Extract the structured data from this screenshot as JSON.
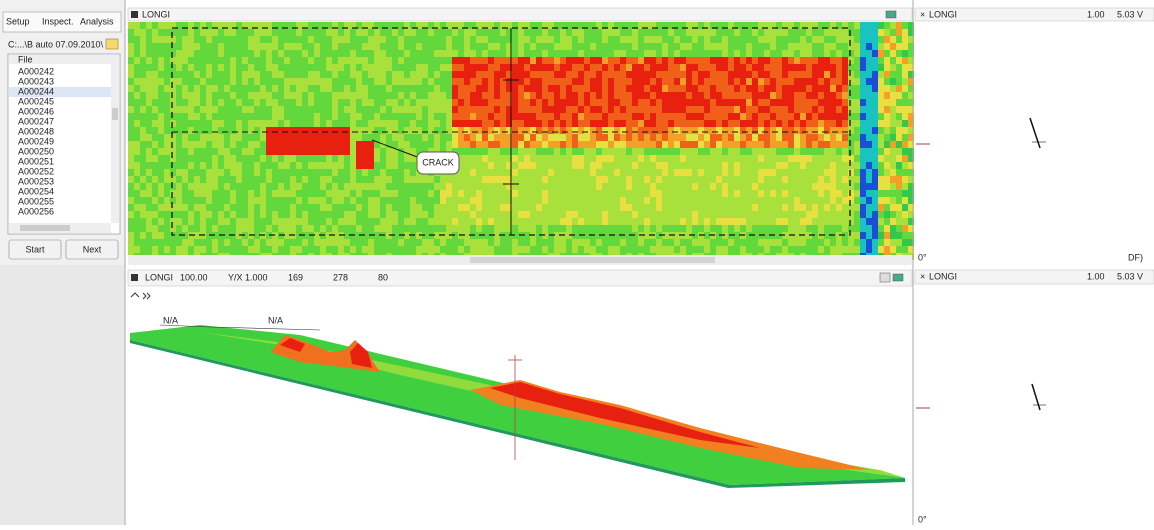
{
  "tabs": [
    "Setup",
    "Inspect.",
    "Analysis"
  ],
  "path": "C:...\\B auto 07.09.2010\\",
  "file_list": {
    "header": "File",
    "items": [
      "A000242",
      "A000243",
      "A000244",
      "A000245",
      "A000246",
      "A000247",
      "A000248",
      "A000249",
      "A000250",
      "A000251",
      "A000252",
      "A000253",
      "A000254",
      "A000255",
      "A000256"
    ]
  },
  "buttons": [
    "Start",
    "Next"
  ],
  "top_view": {
    "title": "LONGI",
    "annotation": "CRACK"
  },
  "bottom_view": {
    "title": "LONGI",
    "span": "100.00",
    "ratio": "Y/X 1.000",
    "rotate_1": "169",
    "rotate_2": "278",
    "rotate_3": "80",
    "labels": [
      "N/A",
      "N/A"
    ]
  },
  "right_top": {
    "title": "LONGI",
    "scale": "1.00",
    "span": "5.03 V",
    "angle": "0°",
    "mode": "DF)"
  },
  "right_bottom": {
    "title": "LONGI",
    "scale": "1.00",
    "span": "5.03 V",
    "angle": "0°"
  }
}
